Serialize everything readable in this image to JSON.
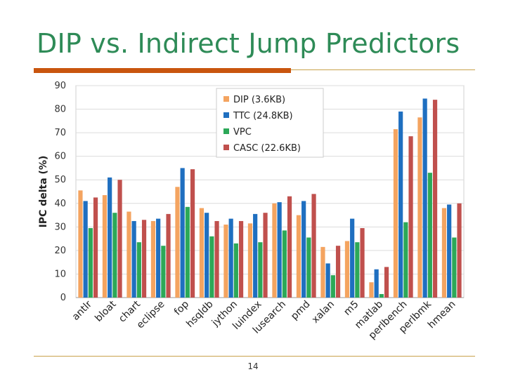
{
  "slide": {
    "title": "DIP vs. Indirect Jump Predictors",
    "page_number": "14"
  },
  "colors": {
    "title": "#2e8b57",
    "accent_bar": "#c9550e",
    "rule": "#c9a24a"
  },
  "chart_data": {
    "type": "bar",
    "title": "",
    "xlabel": "",
    "ylabel": "IPC delta (%)",
    "ylim": [
      0,
      90
    ],
    "yticks": [
      0,
      10,
      20,
      30,
      40,
      50,
      60,
      70,
      80,
      90
    ],
    "grid": true,
    "legend_position": "top-right",
    "categories": [
      "antlr",
      "bloat",
      "chart",
      "eclipse",
      "fop",
      "hsqldb",
      "jython",
      "luindex",
      "lusearch",
      "pmd",
      "xalan",
      "m5",
      "matlab",
      "perlbench",
      "perlbmk",
      "hmean"
    ],
    "series": [
      {
        "name": "DIP (3.6KB)",
        "color": "#f4a460",
        "values": [
          45.5,
          43.5,
          36.5,
          32.5,
          47,
          38,
          31,
          31.5,
          40,
          35,
          21.5,
          24,
          6.5,
          71.5,
          76.5,
          38
        ]
      },
      {
        "name": "TTC (24.8KB)",
        "color": "#1f6fc0",
        "values": [
          41,
          51,
          32.5,
          33.5,
          55,
          36,
          33.5,
          35.5,
          40.5,
          41,
          14.5,
          33.5,
          12,
          79,
          84.5,
          39.5
        ]
      },
      {
        "name": "VPC",
        "color": "#2ca858",
        "values": [
          29.5,
          36,
          23.5,
          22,
          38.5,
          26,
          23,
          23.5,
          28.5,
          25.5,
          9.5,
          23.5,
          1.5,
          32,
          53,
          25.5
        ]
      },
      {
        "name": "CASC (22.6KB)",
        "color": "#c0504d",
        "values": [
          42.5,
          50,
          33,
          35.5,
          54.5,
          32.5,
          32.5,
          36,
          43,
          44,
          22,
          29.5,
          13,
          68.5,
          84,
          40
        ]
      }
    ]
  }
}
